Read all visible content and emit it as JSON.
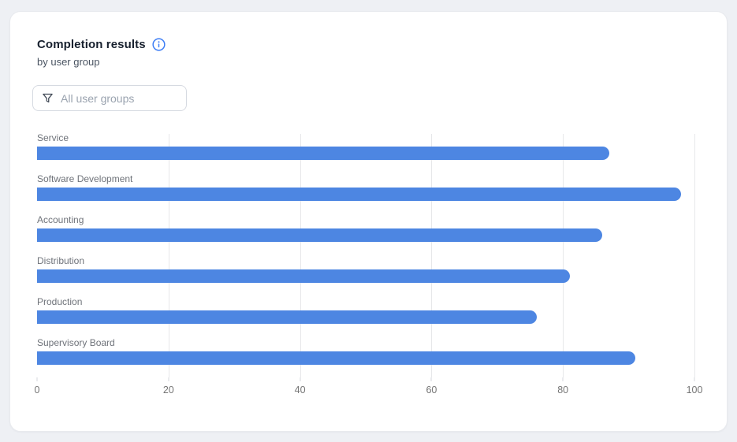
{
  "header": {
    "title": "Completion results",
    "subtitle": "by user group"
  },
  "filter": {
    "placeholder": "All user groups",
    "icon": "funnel-icon"
  },
  "chart_data": {
    "type": "bar",
    "orientation": "horizontal",
    "title": "Completion results",
    "subtitle": "by user group",
    "categories": [
      "Service",
      "Software Development",
      "Accounting",
      "Distribution",
      "Production",
      "Supervisory Board"
    ],
    "values": [
      87,
      98,
      86,
      81,
      76,
      91
    ],
    "xlabel": "",
    "ylabel": "",
    "xlim": [
      0,
      100
    ],
    "x_ticks": [
      0,
      20,
      40,
      60,
      80,
      100
    ],
    "grid": true,
    "legend": "none",
    "bar_color": "#4d86e2",
    "gridline_color": "#e7e8ea",
    "category_label_color": "#6f737a",
    "tick_label_color": "#757575"
  },
  "colors": {
    "page_bg": "#eef0f4",
    "card_bg": "#ffffff",
    "card_border": "#e8eaee",
    "accent_blue": "#3e7ef5",
    "icon_dark": "#3f4754"
  }
}
